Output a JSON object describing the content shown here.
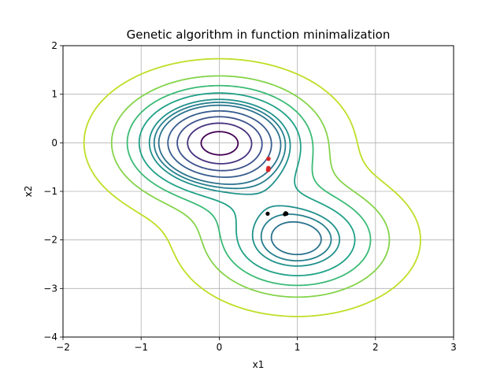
{
  "chart_data": {
    "type": "contour",
    "title": "Genetic algorithm in function minimalization",
    "xlabel": "x1",
    "ylabel": "x2",
    "xlim": [
      -2,
      3
    ],
    "ylim": [
      -4,
      2
    ],
    "xticks": [
      -2,
      -1,
      0,
      1,
      2,
      3
    ],
    "yticks": [
      -4,
      -3,
      -2,
      -1,
      0,
      1,
      2
    ],
    "xtick_labels": [
      "−2",
      "−1",
      "0",
      "1",
      "2",
      "3"
    ],
    "ytick_labels": [
      "−4",
      "−3",
      "−2",
      "−1",
      "0",
      "1",
      "2"
    ],
    "grid": true,
    "colormap": "viridis",
    "function": "f(x1, x2) = -exp(-(x1^2 + x2^2)) - 0.6*exp(-((x1-1)^2 + (x2+2)^2))",
    "contour_levels": [
      -0.95,
      -0.85,
      -0.75,
      -0.65,
      -0.55,
      -0.5,
      -0.45,
      -0.35,
      -0.25,
      -0.15,
      -0.05
    ],
    "contour_colors": [
      "#440154",
      "#46327e",
      "#3b528b",
      "#365c8d",
      "#2c728e",
      "#277f8e",
      "#21918c",
      "#1fa187",
      "#3bbb75",
      "#84d44b",
      "#bddf26"
    ],
    "red_points": [
      {
        "x": 0.63,
        "y": -0.33
      },
      {
        "x": 0.63,
        "y": -0.52
      },
      {
        "x": 0.63,
        "y": -0.55
      },
      {
        "x": 0.625,
        "y": -0.56
      }
    ],
    "black_points": [
      {
        "x": 0.62,
        "y": -1.46
      },
      {
        "x": 0.85,
        "y": -1.45
      },
      {
        "x": 0.86,
        "y": -1.46
      },
      {
        "x": 0.84,
        "y": -1.47
      }
    ],
    "point_colors": {
      "red": "#d62728",
      "black": "#000000"
    }
  }
}
